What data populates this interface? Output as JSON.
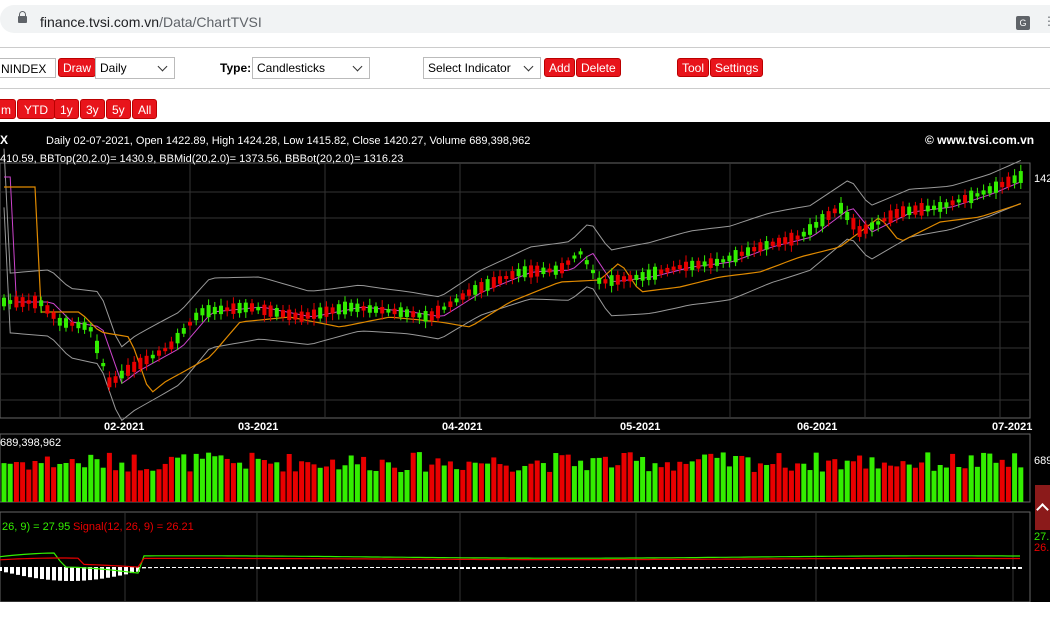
{
  "browser": {
    "url_host": "finance.tvsi.com.vn",
    "url_path": "/Data/ChartTVSI"
  },
  "toolbar": {
    "symbol": "NINDEX",
    "draw_label": "Draw",
    "period_value": "Daily",
    "type_label": "Type:",
    "type_value": "Candlesticks",
    "indicator_placeholder": "Select Indicator",
    "add_label": "Add",
    "delete_label": "Delete",
    "tool_label": "Tool",
    "settings_label": "Settings"
  },
  "ranges": [
    "m",
    "YTD",
    "1y",
    "3y",
    "5y",
    "All"
  ],
  "chart": {
    "info_prefix": "X",
    "info_line": "Daily 02-07-2021, Open 1422.89, High 1424.28, Low 1415.82, Close 1420.27, Volume 689,398,962",
    "bb_line": "410.59, BBTop(20,2.0)= 1430.9, BBMid(20,2.0)= 1373.56, BBBot(20,2.0)= 1316.23",
    "copyright": "© www.tvsi.com.vn",
    "price_right": "142",
    "volume_label": "689,398,962",
    "volume_right": "689",
    "macd_label": "26, 9) = 27.95",
    "signal_label": "Signal(12, 26, 9) = 26.21",
    "macd_right": "27.",
    "signal_right": "26.",
    "colors": {
      "up": "#33ee00",
      "down": "#e80000",
      "ma": "#e08a00",
      "bb": "#999999",
      "mid": "#cc44cc"
    }
  },
  "chart_data": {
    "type": "candlestick",
    "x_ticks": [
      "02-2021",
      "03-2021",
      "04-2021",
      "05-2021",
      "06-2021",
      "07-2021"
    ],
    "last": {
      "date": "02-07-2021",
      "open": 1422.89,
      "high": 1424.28,
      "low": 1415.82,
      "close": 1420.27,
      "volume": 689398962
    },
    "bollinger": {
      "top": 1430.9,
      "mid": 1373.56,
      "bot": 1316.23
    },
    "macd": {
      "macd": 27.95,
      "signal": 26.21
    }
  }
}
